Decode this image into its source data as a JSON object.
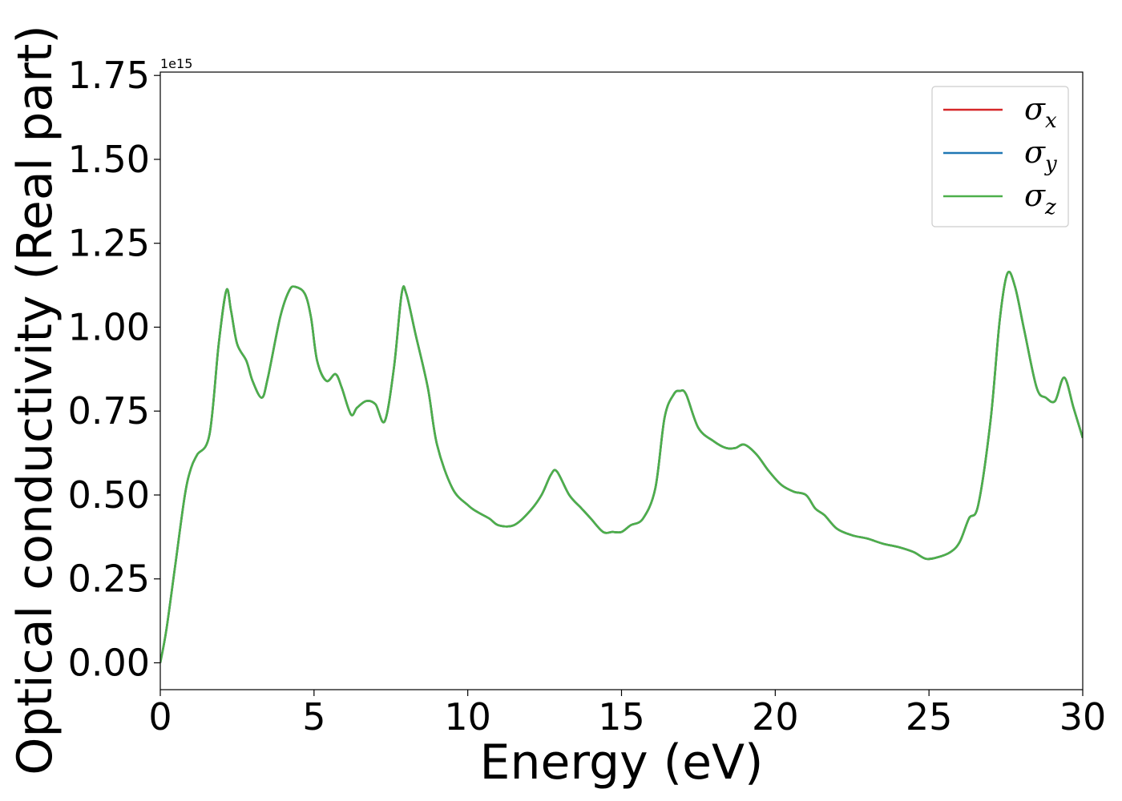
{
  "chart_data": {
    "type": "line",
    "xlabel": "Energy (eV)",
    "ylabel": "Optical conductivity (Real part)",
    "y_offset_text": "1e15",
    "xlim": [
      0,
      30
    ],
    "ylim": [
      -0.08,
      1.76
    ],
    "y_scale_factor": 1000000000000000.0,
    "xticks": [
      0,
      5,
      10,
      15,
      20,
      25,
      30
    ],
    "yticks": [
      0.0,
      0.25,
      0.5,
      0.75,
      1.0,
      1.25,
      1.5,
      1.75
    ],
    "xtick_labels": [
      "0",
      "5",
      "10",
      "15",
      "20",
      "25",
      "30"
    ],
    "ytick_labels": [
      "0.00",
      "0.25",
      "0.50",
      "0.75",
      "1.00",
      "1.25",
      "1.50",
      "1.75"
    ],
    "grid": false,
    "legend_position": "top-right",
    "x": [
      0,
      0.2,
      0.5,
      0.8,
      1.0,
      1.2,
      1.6,
      1.9,
      2.15,
      2.3,
      2.5,
      2.8,
      3.0,
      3.3,
      3.5,
      3.9,
      4.2,
      4.4,
      4.7,
      4.9,
      5.1,
      5.4,
      5.7,
      5.9,
      6.2,
      6.4,
      6.7,
      7.0,
      7.3,
      7.6,
      7.85,
      8.0,
      8.3,
      8.7,
      9.0,
      9.5,
      10.0,
      10.3,
      10.7,
      11.0,
      11.5,
      12.0,
      12.4,
      12.7,
      12.9,
      13.3,
      13.7,
      14.0,
      14.4,
      14.7,
      15.0,
      15.3,
      15.7,
      16.1,
      16.4,
      16.7,
      16.9,
      17.1,
      17.5,
      18.0,
      18.4,
      18.7,
      19.0,
      19.4,
      19.8,
      20.2,
      20.6,
      21.0,
      21.3,
      21.6,
      22.0,
      22.5,
      23.0,
      23.5,
      24.0,
      24.5,
      24.9,
      25.3,
      25.7,
      26.0,
      26.3,
      26.6,
      27.0,
      27.3,
      27.55,
      27.8,
      28.1,
      28.5,
      28.8,
      29.1,
      29.4,
      29.7,
      30.0
    ],
    "series": [
      {
        "name": "σ",
        "sub": "x",
        "color": "#d62728",
        "values": [
          0.0,
          0.1,
          0.3,
          0.5,
          0.58,
          0.62,
          0.68,
          0.95,
          1.11,
          1.05,
          0.95,
          0.9,
          0.84,
          0.79,
          0.85,
          1.03,
          1.11,
          1.12,
          1.1,
          1.03,
          0.9,
          0.84,
          0.86,
          0.82,
          0.74,
          0.76,
          0.78,
          0.77,
          0.72,
          0.88,
          1.1,
          1.1,
          0.98,
          0.82,
          0.65,
          0.52,
          0.47,
          0.45,
          0.43,
          0.41,
          0.41,
          0.45,
          0.5,
          0.56,
          0.57,
          0.5,
          0.46,
          0.43,
          0.39,
          0.39,
          0.39,
          0.41,
          0.43,
          0.52,
          0.73,
          0.8,
          0.81,
          0.8,
          0.7,
          0.66,
          0.64,
          0.64,
          0.65,
          0.62,
          0.57,
          0.53,
          0.51,
          0.5,
          0.46,
          0.44,
          0.4,
          0.38,
          0.37,
          0.355,
          0.345,
          0.33,
          0.31,
          0.315,
          0.33,
          0.36,
          0.43,
          0.47,
          0.72,
          1.02,
          1.16,
          1.12,
          0.99,
          0.82,
          0.79,
          0.78,
          0.85,
          0.76,
          0.67
        ]
      },
      {
        "name": "σ",
        "sub": "y",
        "color": "#1f77b4",
        "values": [
          0.0,
          0.1,
          0.3,
          0.5,
          0.58,
          0.62,
          0.68,
          0.95,
          1.11,
          1.05,
          0.95,
          0.9,
          0.84,
          0.79,
          0.85,
          1.03,
          1.11,
          1.12,
          1.1,
          1.03,
          0.9,
          0.84,
          0.86,
          0.82,
          0.74,
          0.76,
          0.78,
          0.77,
          0.72,
          0.88,
          1.1,
          1.1,
          0.98,
          0.82,
          0.65,
          0.52,
          0.47,
          0.45,
          0.43,
          0.41,
          0.41,
          0.45,
          0.5,
          0.56,
          0.57,
          0.5,
          0.46,
          0.43,
          0.39,
          0.39,
          0.39,
          0.41,
          0.43,
          0.52,
          0.73,
          0.8,
          0.81,
          0.8,
          0.7,
          0.66,
          0.64,
          0.64,
          0.65,
          0.62,
          0.57,
          0.53,
          0.51,
          0.5,
          0.46,
          0.44,
          0.4,
          0.38,
          0.37,
          0.355,
          0.345,
          0.33,
          0.31,
          0.315,
          0.33,
          0.36,
          0.43,
          0.47,
          0.72,
          1.02,
          1.16,
          1.12,
          0.99,
          0.82,
          0.79,
          0.78,
          0.85,
          0.76,
          0.67
        ]
      },
      {
        "name": "σ",
        "sub": "z",
        "color": "#4daf4a",
        "values": [
          0.0,
          0.1,
          0.3,
          0.5,
          0.58,
          0.62,
          0.68,
          0.95,
          1.11,
          1.05,
          0.95,
          0.9,
          0.84,
          0.79,
          0.85,
          1.03,
          1.11,
          1.12,
          1.1,
          1.03,
          0.9,
          0.84,
          0.86,
          0.82,
          0.74,
          0.76,
          0.78,
          0.77,
          0.72,
          0.88,
          1.1,
          1.1,
          0.98,
          0.82,
          0.65,
          0.52,
          0.47,
          0.45,
          0.43,
          0.41,
          0.41,
          0.45,
          0.5,
          0.56,
          0.57,
          0.5,
          0.46,
          0.43,
          0.39,
          0.39,
          0.39,
          0.41,
          0.43,
          0.52,
          0.73,
          0.8,
          0.81,
          0.8,
          0.7,
          0.66,
          0.64,
          0.64,
          0.65,
          0.62,
          0.57,
          0.53,
          0.51,
          0.5,
          0.46,
          0.44,
          0.4,
          0.38,
          0.37,
          0.355,
          0.345,
          0.33,
          0.31,
          0.315,
          0.33,
          0.36,
          0.43,
          0.47,
          0.72,
          1.02,
          1.16,
          1.12,
          0.99,
          0.82,
          0.79,
          0.78,
          0.85,
          0.76,
          0.67
        ]
      }
    ]
  }
}
